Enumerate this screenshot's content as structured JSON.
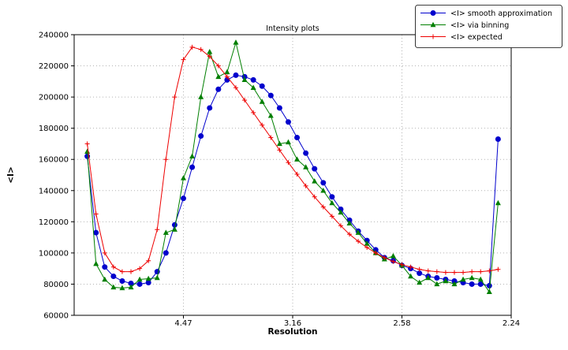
{
  "chart_data": {
    "type": "line",
    "title": "Intensity plots",
    "xlabel": "Resolution",
    "ylabel": "<I>",
    "xlim": [
      0,
      0.2
    ],
    "ylim": [
      60000,
      240000
    ],
    "grid": true,
    "legend_position": "upper right, outside top-right corner",
    "x_ticks": {
      "values": [
        0.05,
        0.1,
        0.15,
        0.2
      ],
      "labels": [
        "4.47",
        "3.16",
        "2.58",
        "2.24"
      ]
    },
    "y_ticks": {
      "values": [
        60000,
        80000,
        100000,
        120000,
        140000,
        160000,
        180000,
        200000,
        220000,
        240000
      ],
      "labels": [
        "60000",
        "80000",
        "100000",
        "120000",
        "140000",
        "160000",
        "180000",
        "200000",
        "220000",
        "240000"
      ]
    },
    "x": [
      0.006,
      0.01,
      0.014,
      0.018,
      0.022,
      0.026,
      0.03,
      0.034,
      0.038,
      0.042,
      0.046,
      0.05,
      0.054,
      0.058,
      0.062,
      0.066,
      0.07,
      0.074,
      0.078,
      0.082,
      0.086,
      0.09,
      0.094,
      0.098,
      0.102,
      0.106,
      0.11,
      0.114,
      0.118,
      0.122,
      0.126,
      0.13,
      0.134,
      0.138,
      0.142,
      0.146,
      0.15,
      0.154,
      0.158,
      0.162,
      0.166,
      0.17,
      0.174,
      0.178,
      0.182,
      0.186,
      0.19,
      0.194
    ],
    "series": [
      {
        "name": "<I> smooth approximation",
        "color": "#0000cd",
        "marker": "circle",
        "values": [
          162000,
          113000,
          91000,
          85000,
          82000,
          80500,
          80000,
          81000,
          88000,
          100000,
          118000,
          135000,
          155000,
          175000,
          193000,
          205000,
          211000,
          214000,
          213000,
          211000,
          207000,
          201000,
          193000,
          184000,
          174000,
          164000,
          154000,
          145000,
          136000,
          128000,
          121000,
          114000,
          108000,
          102000,
          97000,
          95000,
          92000,
          90000,
          87000,
          85000,
          84000,
          83000,
          82000,
          81000,
          80000,
          80000,
          79000,
          173000
        ]
      },
      {
        "name": "<I> via binning",
        "color": "#007f00",
        "marker": "triangle",
        "values": [
          165000,
          93000,
          83000,
          78000,
          77500,
          78000,
          83000,
          83500,
          84000,
          113000,
          115000,
          148000,
          162000,
          200000,
          229000,
          213000,
          216000,
          235000,
          211000,
          206000,
          197000,
          188000,
          170000,
          171000,
          160000,
          155000,
          146000,
          140000,
          132000,
          126000,
          119000,
          113000,
          106000,
          100000,
          96000,
          98000,
          92000,
          85000,
          81000,
          84000,
          80000,
          82000,
          80000,
          83000,
          84000,
          83000,
          75000,
          132000
        ]
      },
      {
        "name": "<I> expected",
        "color": "#ee0000",
        "marker": "plus",
        "values": [
          170000,
          125000,
          100000,
          91000,
          88000,
          88000,
          90000,
          95000,
          115000,
          160000,
          200000,
          224000,
          232000,
          230500,
          226000,
          220000,
          213000,
          206000,
          198000,
          190000,
          182000,
          174000,
          166000,
          158000,
          150500,
          143000,
          136000,
          129500,
          123500,
          117500,
          112000,
          107500,
          103500,
          100000,
          97000,
          94500,
          92500,
          91000,
          89500,
          88500,
          88000,
          87500,
          87500,
          87500,
          88000,
          88000,
          88500,
          89500
        ]
      }
    ]
  }
}
